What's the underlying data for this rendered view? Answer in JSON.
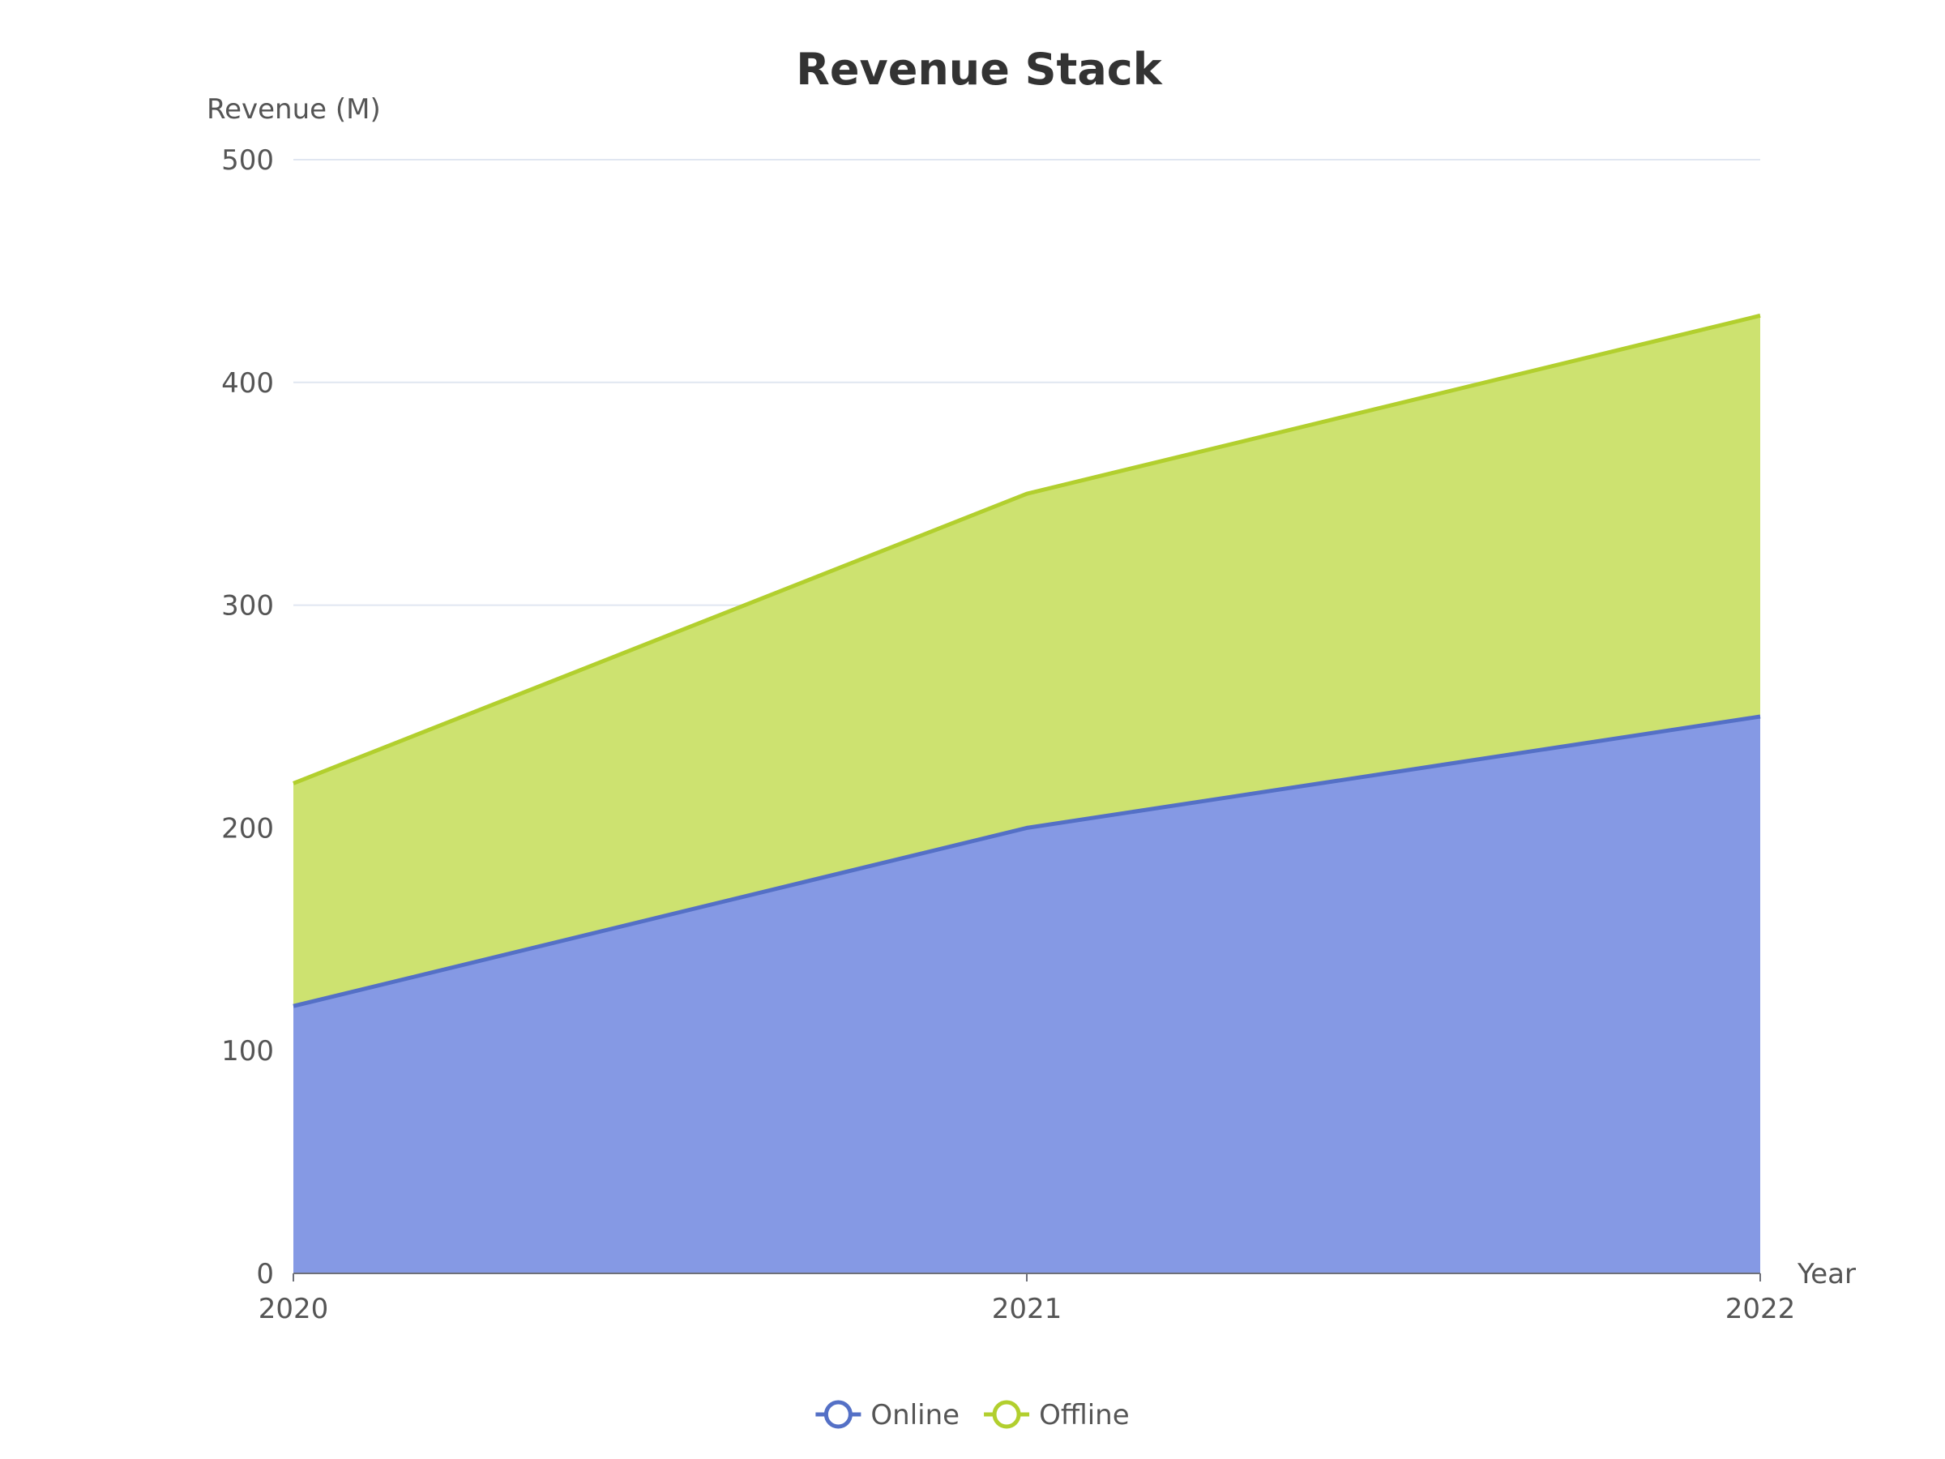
{
  "chart_data": {
    "type": "area",
    "stacked": true,
    "title": "Revenue Stack",
    "xlabel": "Year",
    "ylabel": "Revenue (M)",
    "categories": [
      "2020",
      "2021",
      "2022"
    ],
    "ylim": [
      0,
      500
    ],
    "yticks": [
      0,
      100,
      200,
      300,
      400,
      500
    ],
    "grid": true,
    "legend_position": "bottom",
    "series": [
      {
        "name": "Online",
        "values": [
          120,
          200,
          250
        ],
        "color": "#5470c6",
        "fill": "#8599e4"
      },
      {
        "name": "Offline",
        "values": [
          100,
          150,
          180
        ],
        "color": "#b2cf2e",
        "fill": "#cde270"
      }
    ]
  }
}
